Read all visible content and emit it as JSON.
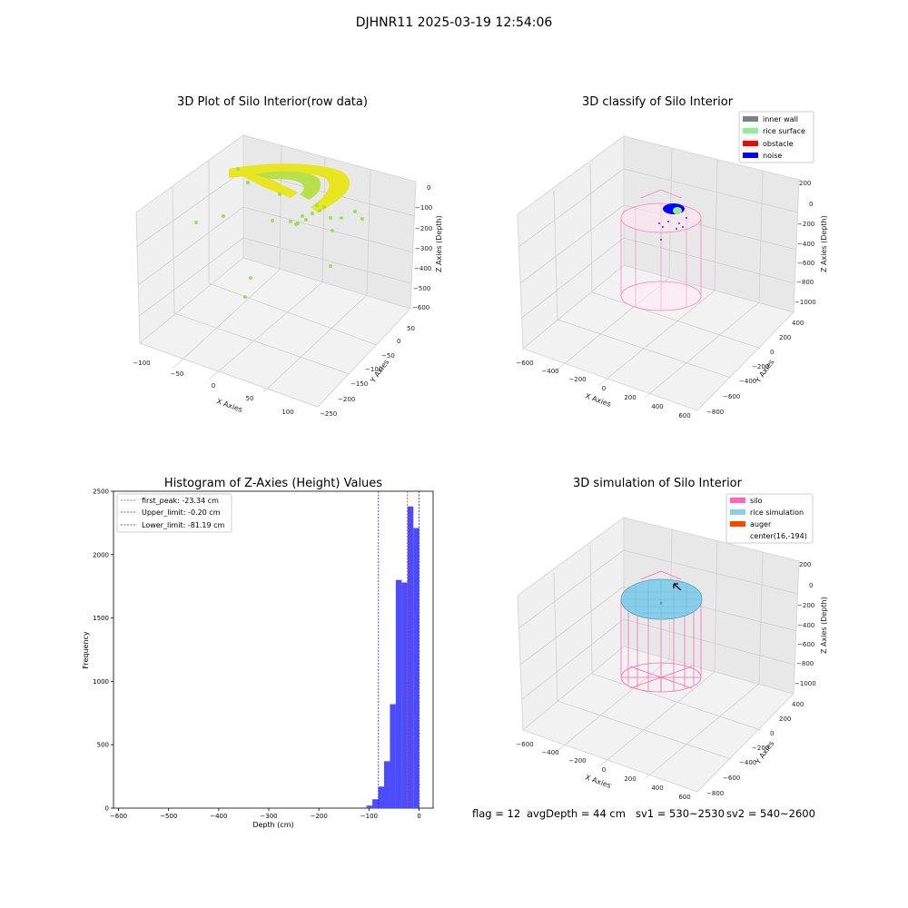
{
  "suptitle": "DJHNR11 2025-03-19 12:54:06",
  "chart_data": [
    {
      "type": "scatter",
      "title": "3D Plot of Silo Interior(row data)",
      "xlabel": "X Axies",
      "ylabel": "Y Axies",
      "zlabel": "Z Axies (Depth)",
      "xticks": [
        "−100",
        "−50",
        "0",
        "50",
        "100"
      ],
      "yticks": [
        "−250",
        "−200",
        "−150",
        "−100",
        "−50",
        "0",
        "50"
      ],
      "zticks": [
        "0",
        "−100",
        "−200",
        "−300",
        "−400",
        "−500",
        "−600"
      ],
      "grid": true,
      "colors": {
        "points": "#e6e620",
        "scatter": "#9ade5a"
      }
    },
    {
      "type": "scatter",
      "title": "3D classify of Silo Interior",
      "xlabel": "X Axies",
      "ylabel": "Y Axies",
      "zlabel": "Z Axies (Depth)",
      "xticks": [
        "−600",
        "−400",
        "−200",
        "0",
        "200",
        "400",
        "600"
      ],
      "yticks": [
        "−800",
        "−600",
        "−400",
        "−200",
        "0",
        "200",
        "400"
      ],
      "zticks": [
        "200",
        "0",
        "−200",
        "−400",
        "−600",
        "−800",
        "−1000"
      ],
      "legend_position": "top-right",
      "legend": [
        {
          "label": "inner wall",
          "color": "#808080"
        },
        {
          "label": "rice surface",
          "color": "#90ee90"
        },
        {
          "label": "obstacle",
          "color": "#ff0000"
        },
        {
          "label": "noise",
          "color": "#0000ff"
        }
      ],
      "grid": true
    },
    {
      "type": "bar",
      "title": "Histogram of Z-Axies (Height) Values",
      "xlabel": "Depth (cm)",
      "ylabel": "Frequency",
      "xlim": [
        -610,
        28
      ],
      "ylim": [
        0,
        2500
      ],
      "xticks": [
        -600,
        -500,
        -400,
        -300,
        -200,
        -100,
        0
      ],
      "xtick_labels": [
        "−600",
        "−500",
        "−400",
        "−300",
        "−200",
        "−100",
        "0"
      ],
      "yticks": [
        0,
        500,
        1000,
        1500,
        2000,
        2500
      ],
      "bin_width": 11.7,
      "bins_start": [
        -116.7,
        -105.0,
        -93.3,
        -81.6,
        -69.9,
        -58.2,
        -46.5,
        -34.8,
        -23.1,
        -11.4
      ],
      "values": [
        5,
        20,
        70,
        170,
        370,
        820,
        1800,
        1780,
        2380,
        2210
      ],
      "bar_color": "#4b4bff",
      "vlines": [
        {
          "x": -23.34,
          "color": "#e03030",
          "label": "first_peak: -23.34 cm"
        },
        {
          "x": -0.2,
          "color": "#2020d0",
          "label": "Upper_limit: -0.20 cm"
        },
        {
          "x": -81.19,
          "color": "#2020d0",
          "label": "Lower_limit: -81.19 cm"
        }
      ],
      "legend_position": "top-left"
    },
    {
      "type": "scatter",
      "title": "3D simulation of Silo Interior",
      "xlabel": "X Axies",
      "ylabel": "Y Axies",
      "zlabel": "Z Axies (Depth)",
      "xticks": [
        "−600",
        "−400",
        "−200",
        "0",
        "200",
        "400",
        "600"
      ],
      "yticks": [
        "−800",
        "−600",
        "−400",
        "−200",
        "0",
        "200",
        "400"
      ],
      "zticks": [
        "200",
        "0",
        "−200",
        "−400",
        "−600",
        "−800",
        "−1000"
      ],
      "legend_position": "top-right",
      "legend": [
        {
          "label": "silo",
          "color": "#ff69b4"
        },
        {
          "label": "rice simulation",
          "color": "#87ceeb"
        },
        {
          "label": "auger",
          "color": "#ff4500"
        },
        {
          "label": "center(16,-194)",
          "color": ""
        }
      ],
      "grid": true
    }
  ],
  "status": {
    "flag": "flag = 12",
    "avg_depth": "avgDepth = 44 cm",
    "sv1": "sv1 = 530~2530",
    "sv2": "sv2 = 540~2600"
  }
}
